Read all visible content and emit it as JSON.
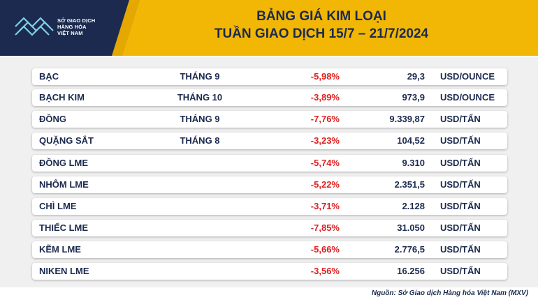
{
  "brand": {
    "lines": [
      "SỞ GIAO DỊCH",
      "HÀNG HÓA",
      "VIỆT NAM"
    ],
    "colors": {
      "navy": "#1b2a4e",
      "gold": "#f2b705",
      "red": "#e02020",
      "logo_teal": "#7fd0e6"
    }
  },
  "header": {
    "title_line1": "BẢNG GIÁ KIM LOẠI",
    "title_line2": "TUẦN GIAO DỊCH 15/7 – 21/7/2024"
  },
  "rows": [
    {
      "name": "BẠC",
      "month": "THÁNG 9",
      "change": "-5,98%",
      "price": "29,3",
      "unit": "USD/OUNCE"
    },
    {
      "name": "BẠCH KIM",
      "month": "THÁNG 10",
      "change": "-3,89%",
      "price": "973,9",
      "unit": "USD/OUNCE"
    },
    {
      "name": "ĐỒNG",
      "month": "THÁNG 9",
      "change": "-7,76%",
      "price": "9.339,87",
      "unit": "USD/TẤN"
    },
    {
      "name": "QUẶNG SẮT",
      "month": "THÁNG 8",
      "change": "-3,23%",
      "price": "104,52",
      "unit": "USD/TẤN"
    },
    {
      "name": "ĐỒNG LME",
      "month": "",
      "change": "-5,74%",
      "price": "9.310",
      "unit": "USD/TẤN"
    },
    {
      "name": "NHÔM LME",
      "month": "",
      "change": "-5,22%",
      "price": "2.351,5",
      "unit": "USD/TẤN"
    },
    {
      "name": "CHÌ LME",
      "month": "",
      "change": "-3,71%",
      "price": "2.128",
      "unit": "USD/TẤN"
    },
    {
      "name": "THIẾC LME",
      "month": "",
      "change": "-7,85%",
      "price": "31.050",
      "unit": "USD/TẤN"
    },
    {
      "name": "KẼM LME",
      "month": "",
      "change": "-5,66%",
      "price": "2.776,5",
      "unit": "USD/TẤN"
    },
    {
      "name": "NIKEN LME",
      "month": "",
      "change": "-3,56%",
      "price": "16.256",
      "unit": "USD/TẤN"
    }
  ],
  "footer": {
    "source": "Nguồn: Sở Giao dịch Hàng hóa Việt Nam (MXV)"
  }
}
